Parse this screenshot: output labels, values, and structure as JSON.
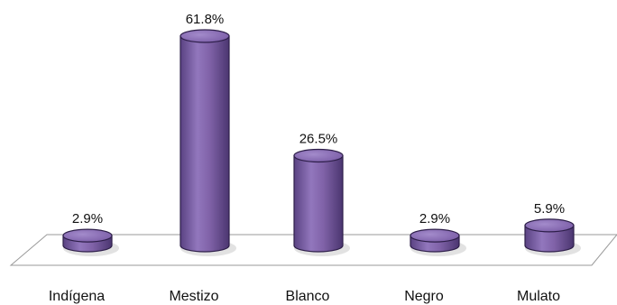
{
  "chart_data": {
    "type": "bar",
    "style": "3d-cylinder",
    "categories": [
      "Indígena",
      "Mestizo",
      "Blanco",
      "Negro",
      "Mulato"
    ],
    "values": [
      2.9,
      61.8,
      26.5,
      2.9,
      5.9
    ],
    "data_labels": [
      "2.9%",
      "61.8%",
      "26.5%",
      "2.9%",
      "5.9%"
    ],
    "unit": "%",
    "legend": "none",
    "grid": false,
    "bar_color": "#8062a8",
    "bar_edge_color": "#2e1f4a",
    "floor_color": "#ffffff",
    "floor_edge_color": "#9a9a9a"
  }
}
